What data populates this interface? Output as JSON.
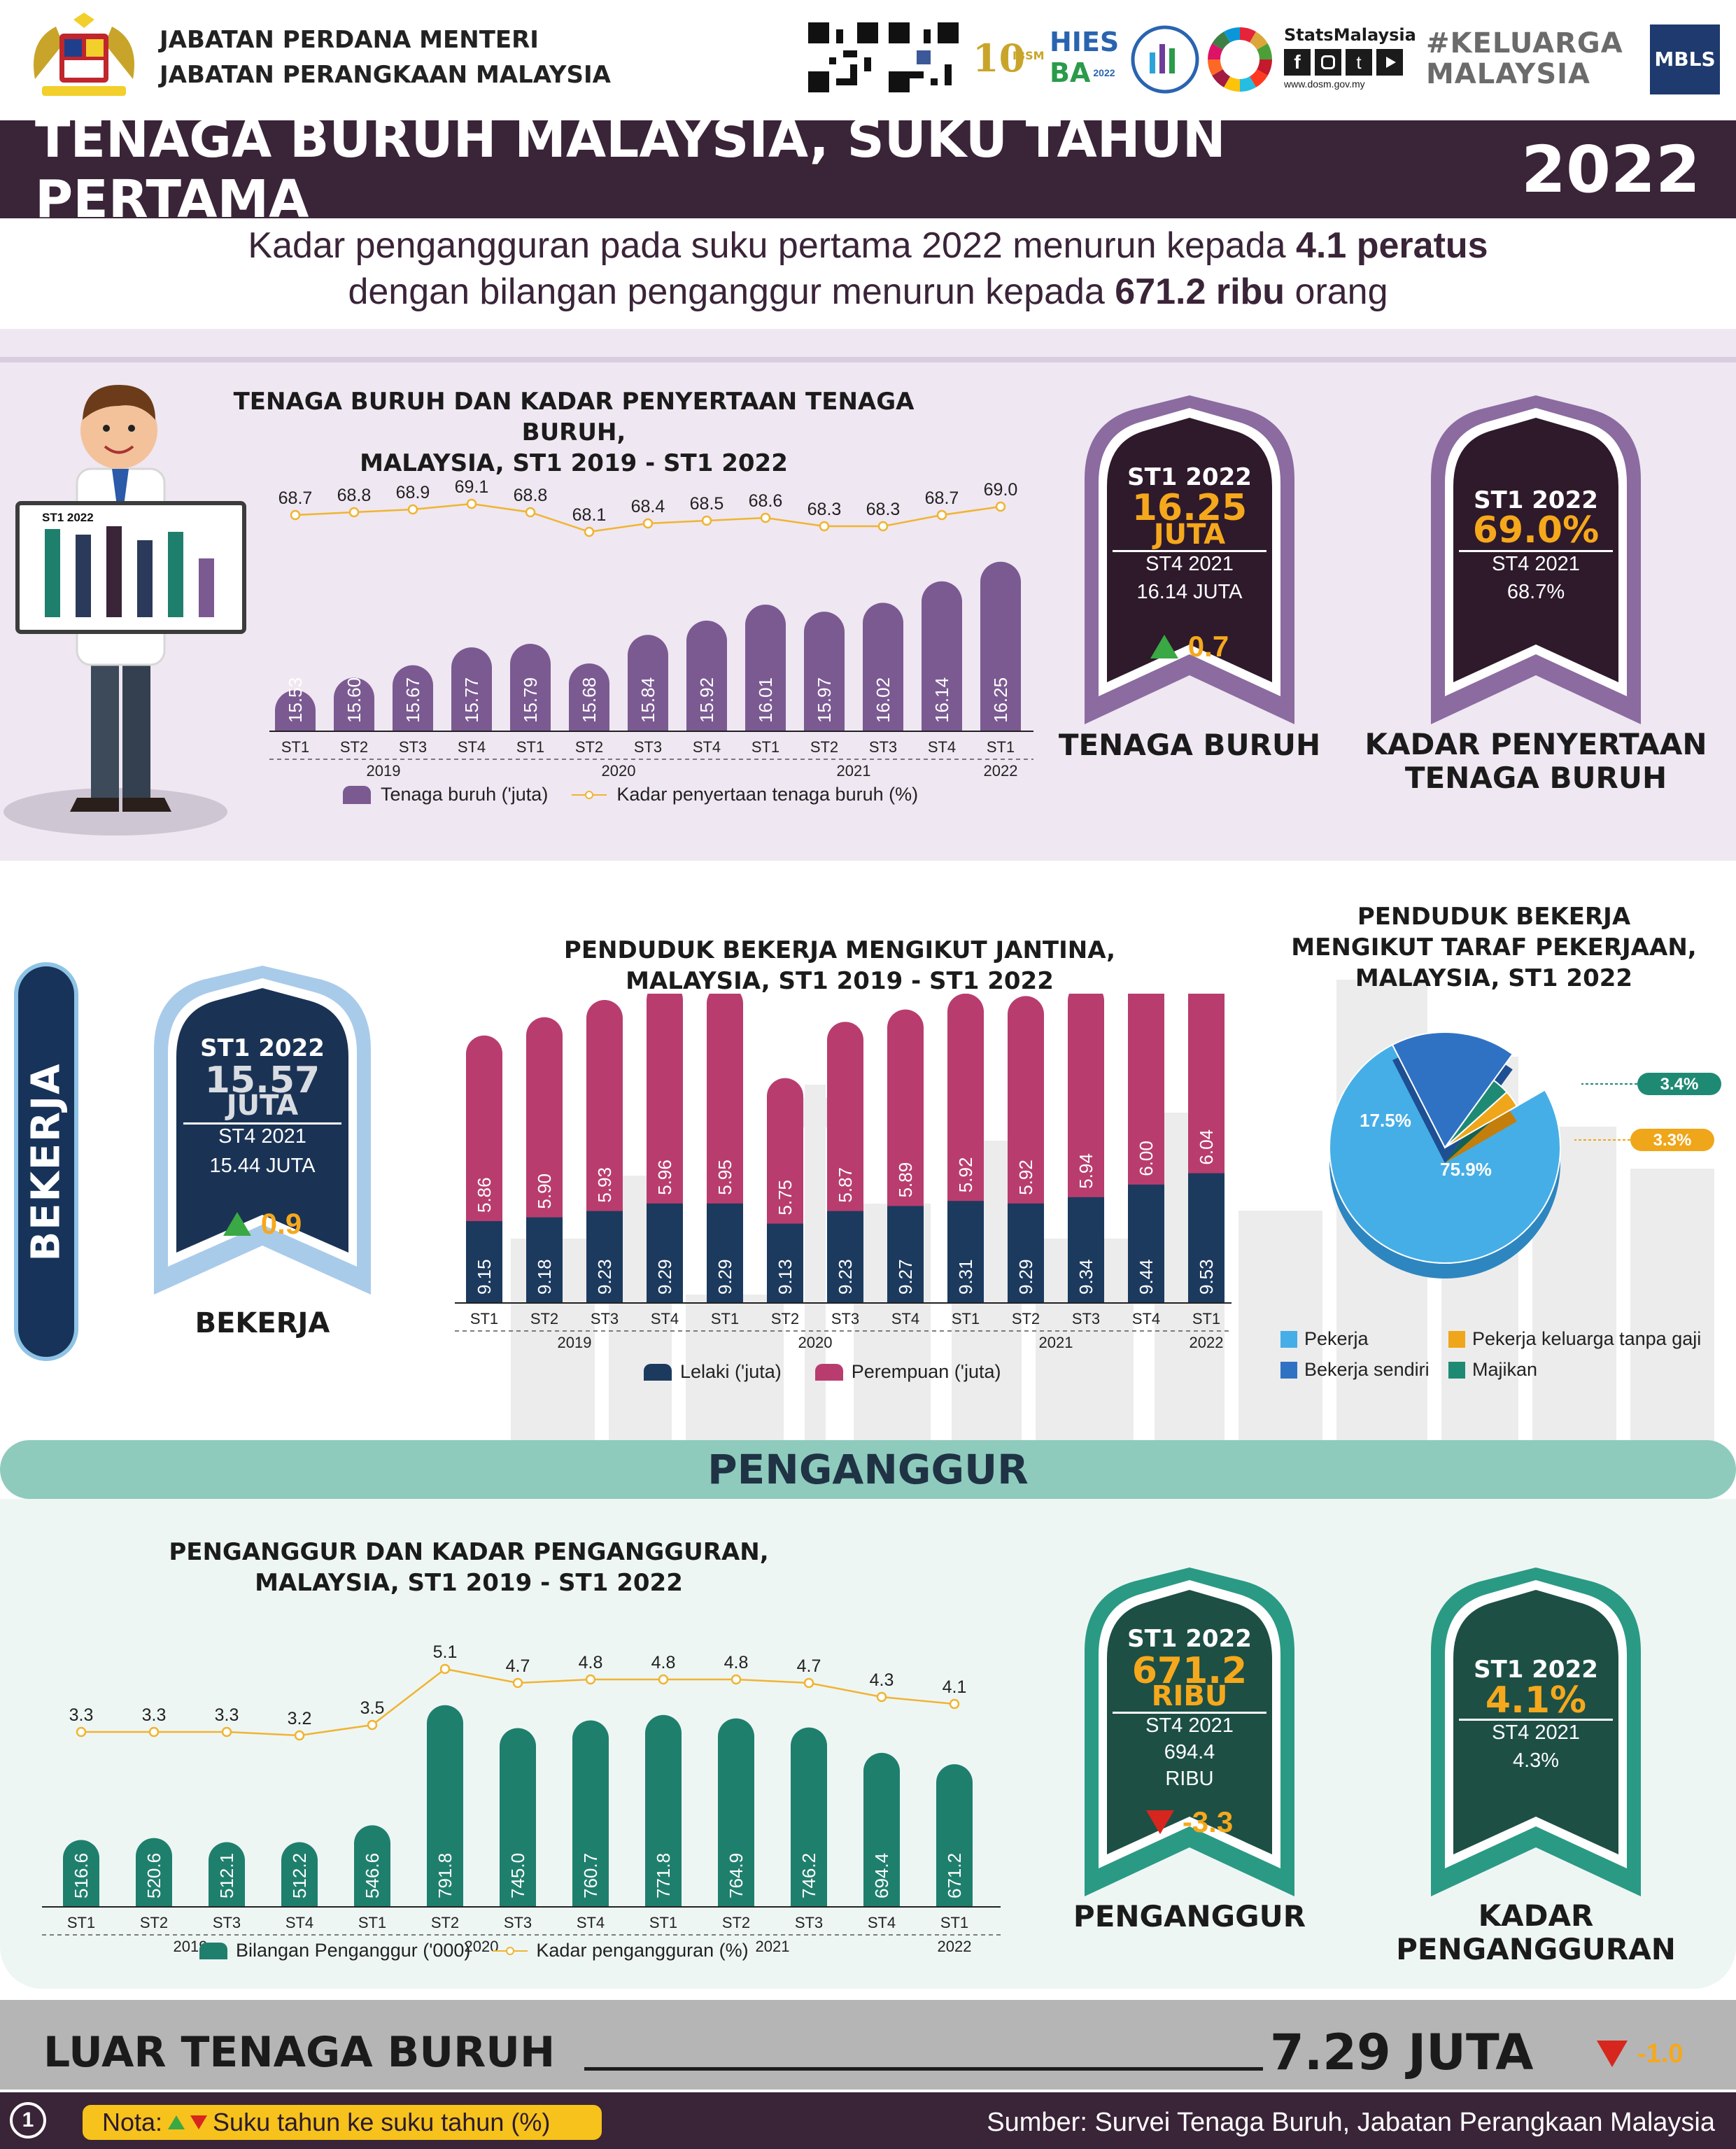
{
  "header": {
    "org_line1": "JABATAN PERDANA MENTERI",
    "org_line2": "JABATAN PERANGKAAN MALAYSIA",
    "logos": [
      "qr-code-1",
      "qr-code-2",
      "10th-anniversary-logo",
      "hies-ba-2022-logo",
      "census-logo",
      "sdg-logo",
      "stats-malaysia-logo",
      "keluarga-malaysia-logo",
      "mbls-logo"
    ],
    "stats_malaysia": "StatsMalaysia",
    "website": "www.dosm.gov.my",
    "hashtag": "#KELUARGA MALAYSIA",
    "mbls": "MBLS",
    "hies": "HIES",
    "ba": "BA",
    "hies_year": "2022"
  },
  "title": {
    "text": "TENAGA BURUH MALAYSIA, SUKU TAHUN PERTAMA",
    "year": "2022"
  },
  "subtitle": {
    "line1_pre": "Kadar pengangguran pada suku pertama 2022 menurun kepada ",
    "line1_bold": "4.1 peratus",
    "line2_pre": "dengan bilangan penganggur menurun kepada ",
    "line2_bold": "671.2 ribu",
    "line2_post": " orang"
  },
  "labour": {
    "chart_title_1": "TENAGA BURUH DAN KADAR PENYERTAAN TENAGA BURUH,",
    "chart_title_2": "MALAYSIA, ST1 2019 - ST1 2022",
    "board_label": "ST1 2022",
    "legend_bar": "Tenaga buruh ('juta)",
    "legend_line": "Kadar penyertaan tenaga buruh (%)",
    "badge1": {
      "period": "ST1 2022",
      "value": "16.25",
      "unit": "JUTA",
      "prev_period": "ST4 2021",
      "prev_value": "16.14 JUTA",
      "change": "0.7",
      "caption": "TENAGA BURUH"
    },
    "badge2": {
      "period": "ST1 2022",
      "value": "69.0%",
      "prev_period": "ST4 2021",
      "prev_value": "68.7%",
      "caption_1": "KADAR PENYERTAAN",
      "caption_2": "TENAGA BURUH"
    }
  },
  "employed": {
    "side_label": "BEKERJA",
    "chart_title_1": "PENDUDUK BEKERJA MENGIKUT JANTINA,",
    "chart_title_2": "MALAYSIA, ST1 2019 - ST1 2022",
    "legend_male": "Lelaki ('juta)",
    "legend_female": "Perempuan ('juta)",
    "badge": {
      "period": "ST1 2022",
      "value": "15.57",
      "unit": "JUTA",
      "prev_period": "ST4 2021",
      "prev_value": "15.44 JUTA",
      "change": "0.9",
      "caption": "BEKERJA"
    },
    "pie_title_1": "PENDUDUK BEKERJA",
    "pie_title_2": "MENGIKUT TARAF PEKERJAAN,",
    "pie_title_3": "MALAYSIA, ST1 2022"
  },
  "unemployed": {
    "banner": "PENGANGGUR",
    "chart_title_1": "PENGANGGUR DAN KADAR PENGANGGURAN,",
    "chart_title_2": "MALAYSIA, ST1 2019 - ST1 2022",
    "legend_bar": "Bilangan Penganggur ('000)",
    "legend_line": "Kadar pengangguran (%)",
    "badge1": {
      "period": "ST1 2022",
      "value": "671.2",
      "unit": "RIBU",
      "prev_period": "ST4 2021",
      "prev_value": "694.4",
      "prev_unit": "RIBU",
      "change": "-3.3",
      "caption": "PENGANGGUR"
    },
    "badge2": {
      "period": "ST1 2022",
      "value": "4.1%",
      "prev_period": "ST4 2021",
      "prev_value": "4.3%",
      "caption_1": "KADAR",
      "caption_2": "PENGANGGURAN"
    }
  },
  "outside": {
    "label": "LUAR TENAGA BURUH",
    "value": "7.29 JUTA",
    "change": "-1.0"
  },
  "footer": {
    "page": "1",
    "note_pre": "Nota:",
    "note_post": "Suku tahun ke suku tahun (%)",
    "source": "Sumber: Survei Tenaga Buruh, Jabatan Perangkaan Malaysia"
  },
  "colors": {
    "purple": "#7b5a92",
    "dark_plum": "#3a2438",
    "navy": "#1c3a5e",
    "pink": "#b83d6e",
    "teal": "#1f7f6d",
    "orange": "#f6a81c",
    "up_green": "#3aa845",
    "down_red": "#d7261e"
  },
  "chart_data": [
    {
      "type": "bar",
      "quarters": [
        "ST1",
        "ST2",
        "ST3",
        "ST4",
        "ST1",
        "ST2",
        "ST3",
        "ST4",
        "ST1",
        "ST2",
        "ST3",
        "ST4",
        "ST1"
      ],
      "years": [
        "2019",
        "2020",
        "2021",
        "2022"
      ],
      "series": [
        {
          "name": "Tenaga buruh ('juta)",
          "values": [
            15.53,
            15.6,
            15.67,
            15.77,
            15.79,
            15.68,
            15.84,
            15.92,
            16.01,
            15.97,
            16.02,
            16.14,
            16.25
          ]
        },
        {
          "name": "Kadar penyertaan tenaga buruh (%)",
          "type": "line",
          "values": [
            68.7,
            68.8,
            68.9,
            69.1,
            68.8,
            68.1,
            68.4,
            68.5,
            68.6,
            68.3,
            68.3,
            68.7,
            69.0
          ]
        }
      ]
    },
    {
      "type": "bar",
      "stacked": true,
      "quarters": [
        "ST1",
        "ST2",
        "ST3",
        "ST4",
        "ST1",
        "ST2",
        "ST3",
        "ST4",
        "ST1",
        "ST2",
        "ST3",
        "ST4",
        "ST1"
      ],
      "years": [
        "2019",
        "2020",
        "2021",
        "2022"
      ],
      "series": [
        {
          "name": "Lelaki ('juta)",
          "values": [
            9.15,
            9.18,
            9.23,
            9.29,
            9.29,
            9.13,
            9.23,
            9.27,
            9.31,
            9.29,
            9.34,
            9.44,
            9.53
          ]
        },
        {
          "name": "Perempuan ('juta)",
          "values": [
            5.86,
            5.9,
            5.93,
            5.96,
            5.95,
            5.75,
            5.87,
            5.89,
            5.92,
            5.92,
            5.94,
            6.0,
            6.04
          ]
        }
      ]
    },
    {
      "type": "pie",
      "labels": [
        "Pekerja",
        "Bekerja sendiri",
        "Pekerja keluarga tanpa gaji",
        "Majikan"
      ],
      "values": [
        75.9,
        17.5,
        3.3,
        3.4
      ],
      "value_labels": [
        "75.9%",
        "17.5%",
        "3.3%",
        "3.4%"
      ],
      "colors": [
        "#46aee6",
        "#2f72c4",
        "#f0a61a",
        "#1f8a74"
      ]
    },
    {
      "type": "bar",
      "quarters": [
        "ST1",
        "ST2",
        "ST3",
        "ST4",
        "ST1",
        "ST2",
        "ST3",
        "ST4",
        "ST1",
        "ST2",
        "ST3",
        "ST4",
        "ST1"
      ],
      "years": [
        "2019",
        "2020",
        "2021",
        "2022"
      ],
      "series": [
        {
          "name": "Bilangan Penganggur ('000)",
          "values": [
            516.6,
            520.6,
            512.1,
            512.2,
            546.6,
            791.8,
            745.0,
            760.7,
            771.8,
            764.9,
            746.2,
            694.4,
            671.2
          ]
        },
        {
          "name": "Kadar pengangguran (%)",
          "type": "line",
          "values": [
            3.3,
            3.3,
            3.3,
            3.2,
            3.5,
            5.1,
            4.7,
            4.8,
            4.8,
            4.8,
            4.7,
            4.3,
            4.1
          ]
        }
      ]
    }
  ]
}
